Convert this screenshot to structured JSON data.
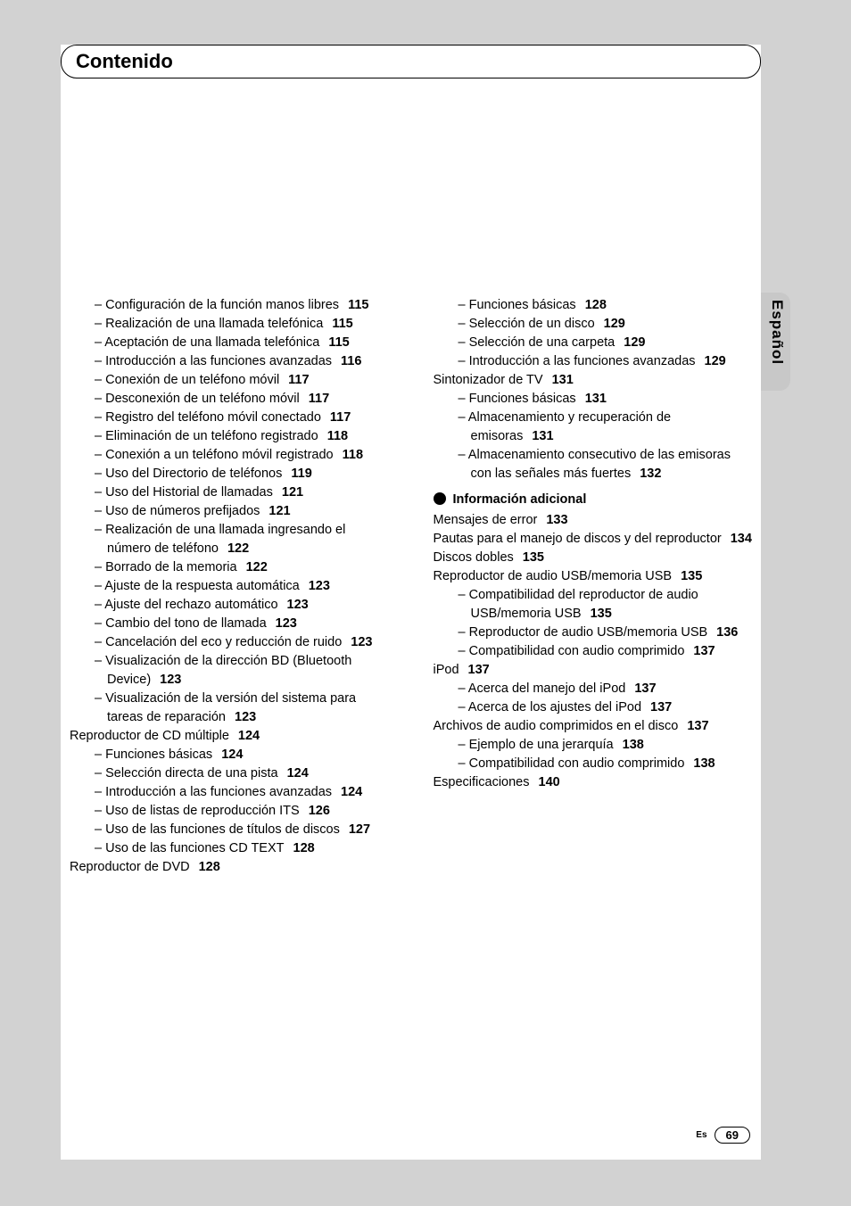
{
  "header": {
    "title": "Contenido"
  },
  "side_label": "Español",
  "footer": {
    "lang": "Es",
    "page": "69"
  },
  "col_left": [
    {
      "lvl": 1,
      "text": "Configuración de la función manos libres",
      "page": "115"
    },
    {
      "lvl": 1,
      "text": "Realización de una llamada telefónica",
      "page": "115"
    },
    {
      "lvl": 1,
      "text": "Aceptación de una llamada telefónica",
      "page": "115"
    },
    {
      "lvl": 1,
      "text": "Introducción a las funciones avanzadas",
      "page": "116"
    },
    {
      "lvl": 1,
      "text": "Conexión de un teléfono móvil",
      "page": "117"
    },
    {
      "lvl": 1,
      "text": "Desconexión de un teléfono móvil",
      "page": "117"
    },
    {
      "lvl": 1,
      "text": "Registro del teléfono móvil conectado",
      "page": "117"
    },
    {
      "lvl": 1,
      "text": "Eliminación de un teléfono registrado",
      "page": "118"
    },
    {
      "lvl": 1,
      "text": "Conexión a un teléfono móvil registrado",
      "page": "118"
    },
    {
      "lvl": 1,
      "text": "Uso del Directorio de teléfonos",
      "page": "119"
    },
    {
      "lvl": 1,
      "text": "Uso del Historial de llamadas",
      "page": "121"
    },
    {
      "lvl": 1,
      "text": "Uso de números prefijados",
      "page": "121"
    },
    {
      "lvl": 1,
      "text": "Realización de una llamada ingresando el número de teléfono",
      "page": "122"
    },
    {
      "lvl": 1,
      "text": "Borrado de la memoria",
      "page": "122"
    },
    {
      "lvl": 1,
      "text": "Ajuste de la respuesta automática",
      "page": "123"
    },
    {
      "lvl": 1,
      "text": "Ajuste del rechazo automático",
      "page": "123"
    },
    {
      "lvl": 1,
      "text": "Cambio del tono de llamada",
      "page": "123"
    },
    {
      "lvl": 1,
      "text": "Cancelación del eco y reducción de ruido",
      "page": "123"
    },
    {
      "lvl": 1,
      "text": "Visualización de la dirección BD (Bluetooth Device)",
      "page": "123"
    },
    {
      "lvl": 1,
      "text": "Visualización de la versión del sistema para tareas de reparación",
      "page": "123"
    },
    {
      "lvl": 0,
      "text": "Reproductor de CD múltiple",
      "page": "124"
    },
    {
      "lvl": 1,
      "text": "Funciones básicas",
      "page": "124"
    },
    {
      "lvl": 1,
      "text": "Selección directa de una pista",
      "page": "124"
    },
    {
      "lvl": 1,
      "text": "Introducción a las funciones avanzadas",
      "page": "124"
    },
    {
      "lvl": 1,
      "text": "Uso de listas de reproducción ITS",
      "page": "126"
    },
    {
      "lvl": 1,
      "text": "Uso de las funciones de títulos de discos",
      "page": "127"
    },
    {
      "lvl": 1,
      "text": "Uso de las funciones CD TEXT",
      "page": "128"
    },
    {
      "lvl": 0,
      "text": "Reproductor de DVD",
      "page": "128"
    }
  ],
  "col_right_a": [
    {
      "lvl": 2,
      "text": "Funciones básicas",
      "page": "128"
    },
    {
      "lvl": 2,
      "text": "Selección de un disco",
      "page": "129"
    },
    {
      "lvl": 2,
      "text": "Selección de una carpeta",
      "page": "129"
    },
    {
      "lvl": 2,
      "text": "Introducción a las funciones avanzadas",
      "page": "129"
    },
    {
      "lvl": 1,
      "text": "Sintonizador de TV",
      "page": "131"
    },
    {
      "lvl": 2,
      "text": "Funciones básicas",
      "page": "131"
    },
    {
      "lvl": 2,
      "text": "Almacenamiento y recuperación de emisoras",
      "page": "131"
    },
    {
      "lvl": 2,
      "text": "Almacenamiento consecutivo de las emisoras con las señales más fuertes",
      "page": "132"
    }
  ],
  "section_b_title": "Información adicional",
  "col_right_b": [
    {
      "lvl": 1,
      "text": "Mensajes de error",
      "page": "133"
    },
    {
      "lvl": 1,
      "text": "Pautas para el manejo de discos y del reproductor",
      "page": "134"
    },
    {
      "lvl": 1,
      "text": "Discos dobles",
      "page": "135"
    },
    {
      "lvl": 1,
      "text": "Reproductor de audio USB/memoria USB",
      "page": "135"
    },
    {
      "lvl": 2,
      "text": "Compatibilidad del reproductor de audio USB/memoria USB",
      "page": "135"
    },
    {
      "lvl": 2,
      "text": "Reproductor de audio USB/memoria USB",
      "page": "136"
    },
    {
      "lvl": 2,
      "text": "Compatibilidad con audio comprimido",
      "page": "137"
    },
    {
      "lvl": 1,
      "text": "iPod",
      "page": "137"
    },
    {
      "lvl": 2,
      "text": "Acerca del manejo del iPod",
      "page": "137"
    },
    {
      "lvl": 2,
      "text": "Acerca de los ajustes del iPod",
      "page": "137"
    },
    {
      "lvl": 1,
      "text": "Archivos de audio comprimidos en el disco",
      "page": "137"
    },
    {
      "lvl": 2,
      "text": "Ejemplo de una jerarquía",
      "page": "138"
    },
    {
      "lvl": 2,
      "text": "Compatibilidad con audio comprimido",
      "page": "138"
    },
    {
      "lvl": 1,
      "text": "Especificaciones",
      "page": "140"
    }
  ]
}
